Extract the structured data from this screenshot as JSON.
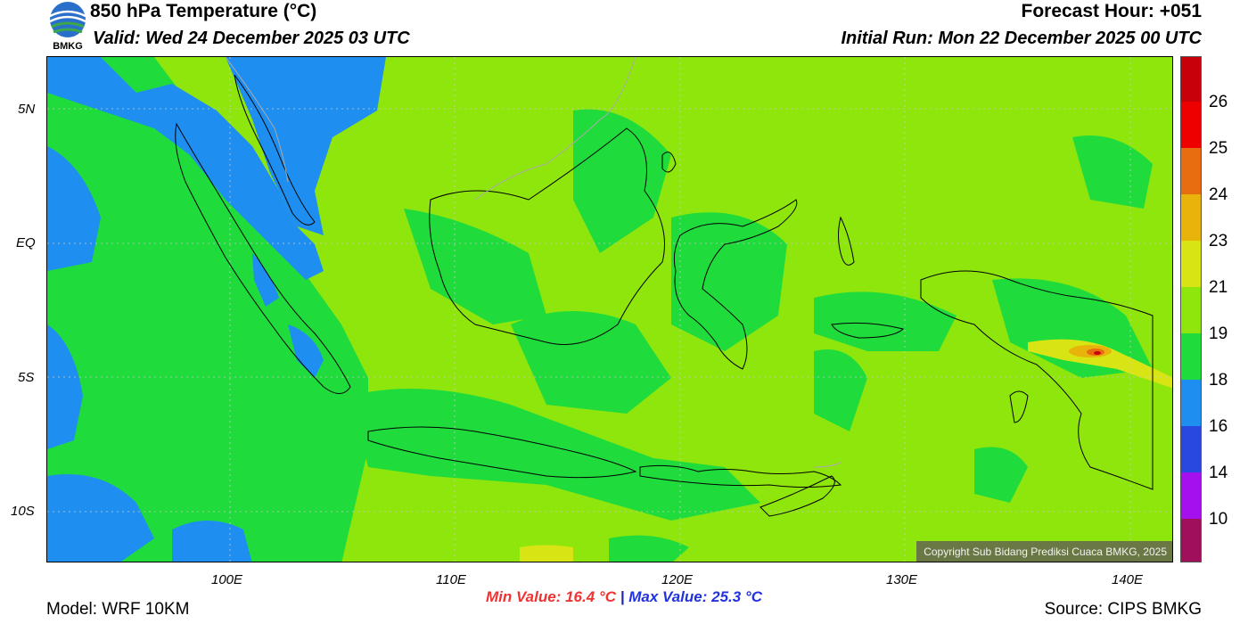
{
  "header": {
    "title": "850 hPa Temperature (°C)",
    "valid": "Valid: Wed 24 December 2025 03 UTC",
    "forecast_hour": "Forecast Hour: +051",
    "initial_run": "Initial Run: Mon 22 December 2025 00 UTC"
  },
  "logo": {
    "text": "BMKG",
    "icon": "bmkg-logo-icon"
  },
  "map": {
    "lat_labels": [
      "5N",
      "EQ",
      "5S",
      "10S"
    ],
    "lon_labels": [
      "100E",
      "110E",
      "120E",
      "130E",
      "140E"
    ],
    "copyright": "Copyright Sub Bidang Prediksi Cuaca BMKG, 2025",
    "colors": {
      "background_field": "#8fe60c",
      "green_field": "#1fdc3c",
      "blue_field": "#1e8ef0",
      "coastline": "#000000",
      "border": "#aaaaaa"
    }
  },
  "colorbar": {
    "labels": [
      "26",
      "25",
      "24",
      "23",
      "21",
      "19",
      "18",
      "16",
      "14",
      "10"
    ],
    "colors": [
      "#c8000a",
      "#ee0000",
      "#e86c10",
      "#e8b40c",
      "#d8e414",
      "#8fe60c",
      "#1fdc3c",
      "#1e8ef0",
      "#2848e0",
      "#a410ee",
      "#a0105a"
    ]
  },
  "stats": {
    "min_label": "Min Value: 16.4 °C",
    "separator": "|",
    "max_label": "Max Value: 25.3 °C"
  },
  "footer": {
    "model": "Model: WRF 10KM",
    "source": "Source: CIPS BMKG"
  }
}
